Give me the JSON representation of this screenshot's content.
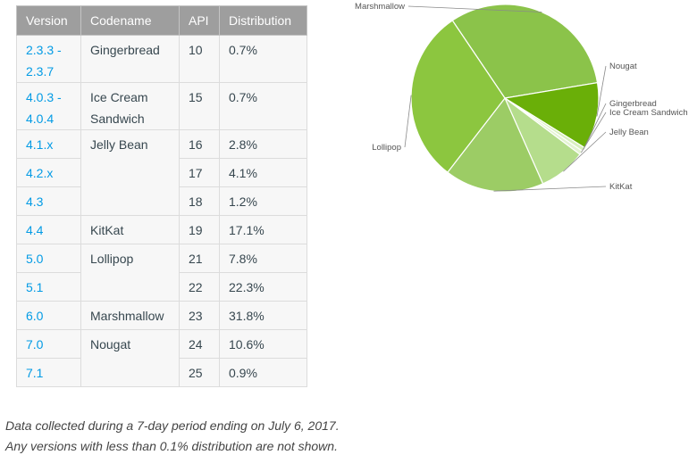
{
  "table": {
    "headers": [
      "Version",
      "Codename",
      "API",
      "Distribution"
    ],
    "rows": [
      {
        "version_line1": "2.3.3 -",
        "version_line2": "2.3.7",
        "codename_line1": "Gingerbread",
        "codename_line2": "",
        "api": "10",
        "dist": "0.7%"
      },
      {
        "version_line1": "4.0.3 -",
        "version_line2": "4.0.4",
        "codename_line1": "Ice Cream",
        "codename_line2": "Sandwich",
        "api": "15",
        "dist": "0.7%"
      },
      {
        "version": "4.1.x",
        "codename": "Jelly Bean",
        "api": "16",
        "dist": "2.8%"
      },
      {
        "version": "4.2.x",
        "api": "17",
        "dist": "4.1%"
      },
      {
        "version": "4.3",
        "api": "18",
        "dist": "1.2%"
      },
      {
        "version": "4.4",
        "codename": "KitKat",
        "api": "19",
        "dist": "17.1%"
      },
      {
        "version": "5.0",
        "codename": "Lollipop",
        "api": "21",
        "dist": "7.8%"
      },
      {
        "version": "5.1",
        "api": "22",
        "dist": "22.3%"
      },
      {
        "version": "6.0",
        "codename": "Marshmallow",
        "api": "23",
        "dist": "31.8%"
      },
      {
        "version": "7.0",
        "codename": "Nougat",
        "api": "24",
        "dist": "10.6%"
      },
      {
        "version": "7.1",
        "api": "25",
        "dist": "0.9%"
      }
    ]
  },
  "notes": {
    "line1": "Data collected during a 7-day period ending on July 6, 2017.",
    "line2": "Any versions with less than 0.1% distribution are not shown."
  },
  "colors": {
    "header_bg": "#9e9e9e",
    "link": "#039be5",
    "marshmallow": "#8bc34a",
    "nougat": "#6aaf08",
    "gingerbread": "#d8efbf",
    "ice_cream": "#e4f3d2",
    "jelly_bean": "#b5dd8c",
    "kitkat": "#9ccc65",
    "lollipop": "#8cc63f"
  },
  "chart_data": {
    "type": "pie",
    "start_angle_deg": 124,
    "slices": [
      {
        "label": "Marshmallow",
        "value": 31.8,
        "color": "#8bc34a"
      },
      {
        "label": "Nougat",
        "value": 11.5,
        "color": "#6aaf08"
      },
      {
        "label": "Gingerbread",
        "value": 0.7,
        "color": "#d8efbf"
      },
      {
        "label": "Ice Cream Sandwich",
        "value": 0.7,
        "color": "#e4f3d2"
      },
      {
        "label": "Jelly Bean",
        "value": 8.1,
        "color": "#b5dd8c"
      },
      {
        "label": "KitKat",
        "value": 17.1,
        "color": "#9ccc65"
      },
      {
        "label": "Lollipop",
        "value": 30.1,
        "color": "#8cc63f"
      }
    ]
  }
}
